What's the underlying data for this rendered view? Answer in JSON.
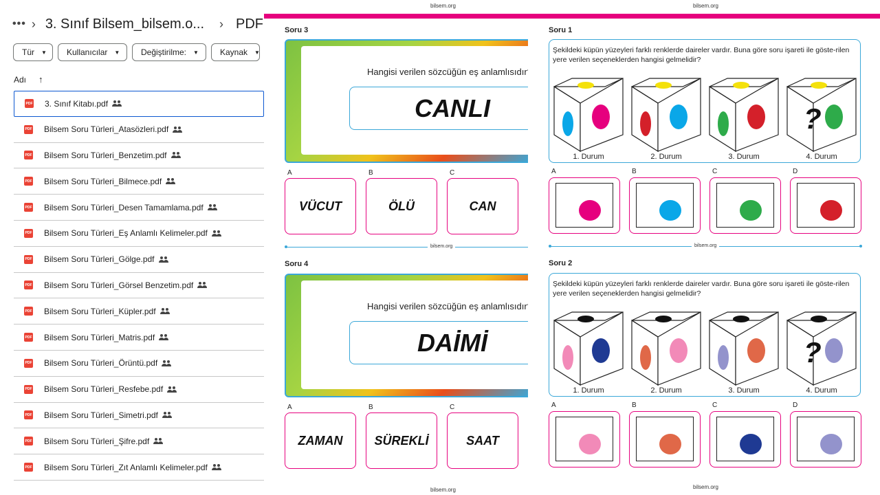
{
  "drive": {
    "breadcrumb": {
      "more": "•••",
      "folder": "3. Sınıf Bilsem_bilsem.o...",
      "current": "PDF"
    },
    "filters": [
      "Tür",
      "Kullanıcılar",
      "Değiştirilme:",
      "Kaynak"
    ],
    "list_header": {
      "name": "Adı"
    },
    "files": [
      "3. Sınıf Kitabı.pdf",
      "Bilsem Soru Türleri_Atasözleri.pdf",
      "Bilsem Soru Türleri_Benzetim.pdf",
      "Bilsem Soru Türleri_Bilmece.pdf",
      "Bilsem Soru Türleri_Desen Tamamlama.pdf",
      "Bilsem Soru Türleri_Eş Anlamlı Kelimeler.pdf",
      "Bilsem Soru Türleri_Gölge.pdf",
      "Bilsem Soru Türleri_Görsel Benzetim.pdf",
      "Bilsem Soru Türleri_Küpler.pdf",
      "Bilsem Soru Türleri_Matris.pdf",
      "Bilsem Soru Türleri_Örüntü.pdf",
      "Bilsem Soru Türleri_Resfebe.pdf",
      "Bilsem Soru Türleri_Simetri.pdf",
      "Bilsem Soru Türleri_Şifre.pdf",
      "Bilsem Soru Türleri_Zıt Anlamlı Kelimeler.pdf"
    ],
    "pdf_icon_text": "PDF"
  },
  "middle": {
    "site": "bilsem.org",
    "q3": {
      "label": "Soru 3",
      "question": "Hangisi verilen sözcüğün eş anlamlısıdır?",
      "word": "CANLI",
      "options": [
        {
          "letter": "A",
          "text": "VÜCUT"
        },
        {
          "letter": "B",
          "text": "ÖLÜ"
        },
        {
          "letter": "C",
          "text": "CAN"
        }
      ]
    },
    "q4": {
      "label": "Soru 4",
      "question": "Hangisi verilen sözcüğün eş anlamlısıdır?",
      "word": "DAİMİ",
      "options": [
        {
          "letter": "A",
          "text": "ZAMAN"
        },
        {
          "letter": "B",
          "text": "SÜREKLİ"
        },
        {
          "letter": "C",
          "text": "SAAT"
        }
      ]
    }
  },
  "right": {
    "site": "bilsem.org",
    "q1": {
      "label": "Soru 1",
      "text": "Şekildeki küpün yüzeyleri farklı renklerde daireler vardır. Buna göre soru işareti ile göste-rilen yere verilen seçeneklerden hangisi gelmelidir?",
      "durum": [
        "1. Durum",
        "2. Durum",
        "3. Durum",
        "4. Durum"
      ],
      "cubes": [
        {
          "top": "#f4e10b",
          "left": "#0aa7e8",
          "right": "#e6007e"
        },
        {
          "top": "#f4e10b",
          "left": "#d4202a",
          "right": "#0aa7e8"
        },
        {
          "top": "#f4e10b",
          "left": "#2eab4a",
          "right": "#d4202a"
        },
        {
          "top": "#f4e10b",
          "left": "?",
          "right": "#2eab4a"
        }
      ],
      "options": [
        {
          "letter": "A",
          "color": "#e6007e"
        },
        {
          "letter": "B",
          "color": "#0aa7e8"
        },
        {
          "letter": "C",
          "color": "#2eab4a"
        },
        {
          "letter": "D",
          "color": "#d4202a"
        }
      ]
    },
    "q2": {
      "label": "Soru 2",
      "text": "Şekildeki küpün yüzeyleri farklı renklerde daireler vardır. Buna göre soru işareti ile göste-rilen yere verilen seçeneklerden hangisi gelmelidir?",
      "durum": [
        "1. Durum",
        "2. Durum",
        "3. Durum",
        "4. Durum"
      ],
      "cubes": [
        {
          "top": "#111111",
          "left": "#f28ab8",
          "right": "#1f3a93"
        },
        {
          "top": "#111111",
          "left": "#e06848",
          "right": "#f28ab8"
        },
        {
          "top": "#111111",
          "left": "#9393cc",
          "right": "#e06848"
        },
        {
          "top": "#111111",
          "left": "?",
          "right": "#9393cc"
        }
      ],
      "options": [
        {
          "letter": "A",
          "color": "#f28ab8"
        },
        {
          "letter": "B",
          "color": "#e06848"
        },
        {
          "letter": "C",
          "color": "#1f3a93"
        },
        {
          "letter": "D",
          "color": "#9393cc"
        }
      ]
    }
  }
}
